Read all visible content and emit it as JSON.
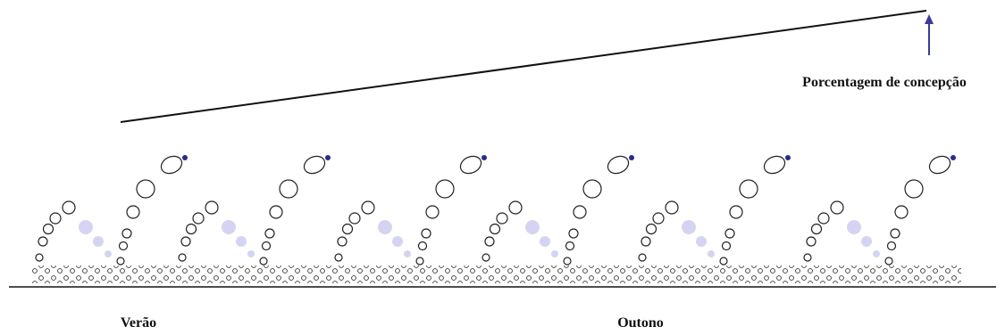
{
  "annotation": {
    "label": "Porcentagem de concepção"
  },
  "seasons": [
    "Verão",
    "Outono"
  ]
}
